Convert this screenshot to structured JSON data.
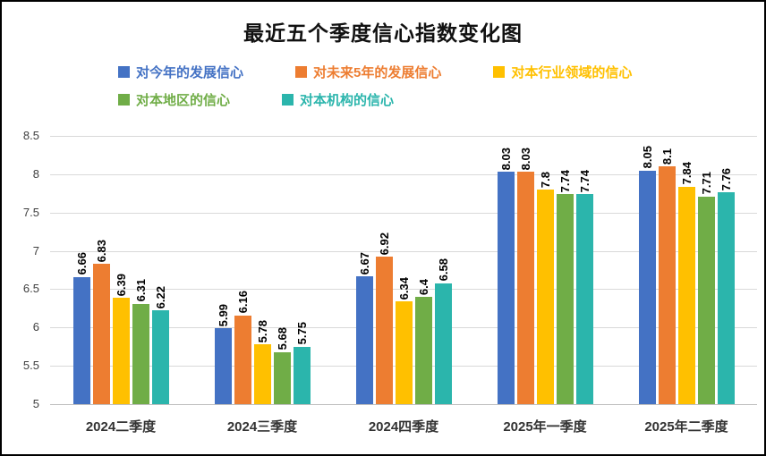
{
  "chart_data": {
    "type": "bar",
    "title": "最近五个季度信心指数变化图",
    "legend_position": "top",
    "grid": true,
    "ylim": [
      5,
      8.5
    ],
    "ytick_step": 0.5,
    "categories": [
      "2024二季度",
      "2024三季度",
      "2024四季度",
      "2025年一季度",
      "2025年二季度"
    ],
    "series": [
      {
        "name": "对今年的发展信心",
        "color": "#4472C4",
        "values": [
          6.66,
          5.99,
          6.67,
          8.03,
          8.05
        ]
      },
      {
        "name": "对未来5年的发展信心",
        "color": "#ED7D31",
        "values": [
          6.83,
          6.16,
          6.92,
          8.03,
          8.1
        ]
      },
      {
        "name": "对本行业领域的信心",
        "color": "#FFC000",
        "values": [
          6.39,
          5.78,
          6.34,
          7.8,
          7.84
        ]
      },
      {
        "name": "对本地区的信心",
        "color": "#70AD47",
        "values": [
          6.31,
          5.68,
          6.4,
          7.74,
          7.71
        ]
      },
      {
        "name": "对本机构的信心",
        "color": "#2BB5AC",
        "values": [
          6.22,
          5.75,
          6.58,
          7.74,
          7.76
        ]
      }
    ]
  }
}
